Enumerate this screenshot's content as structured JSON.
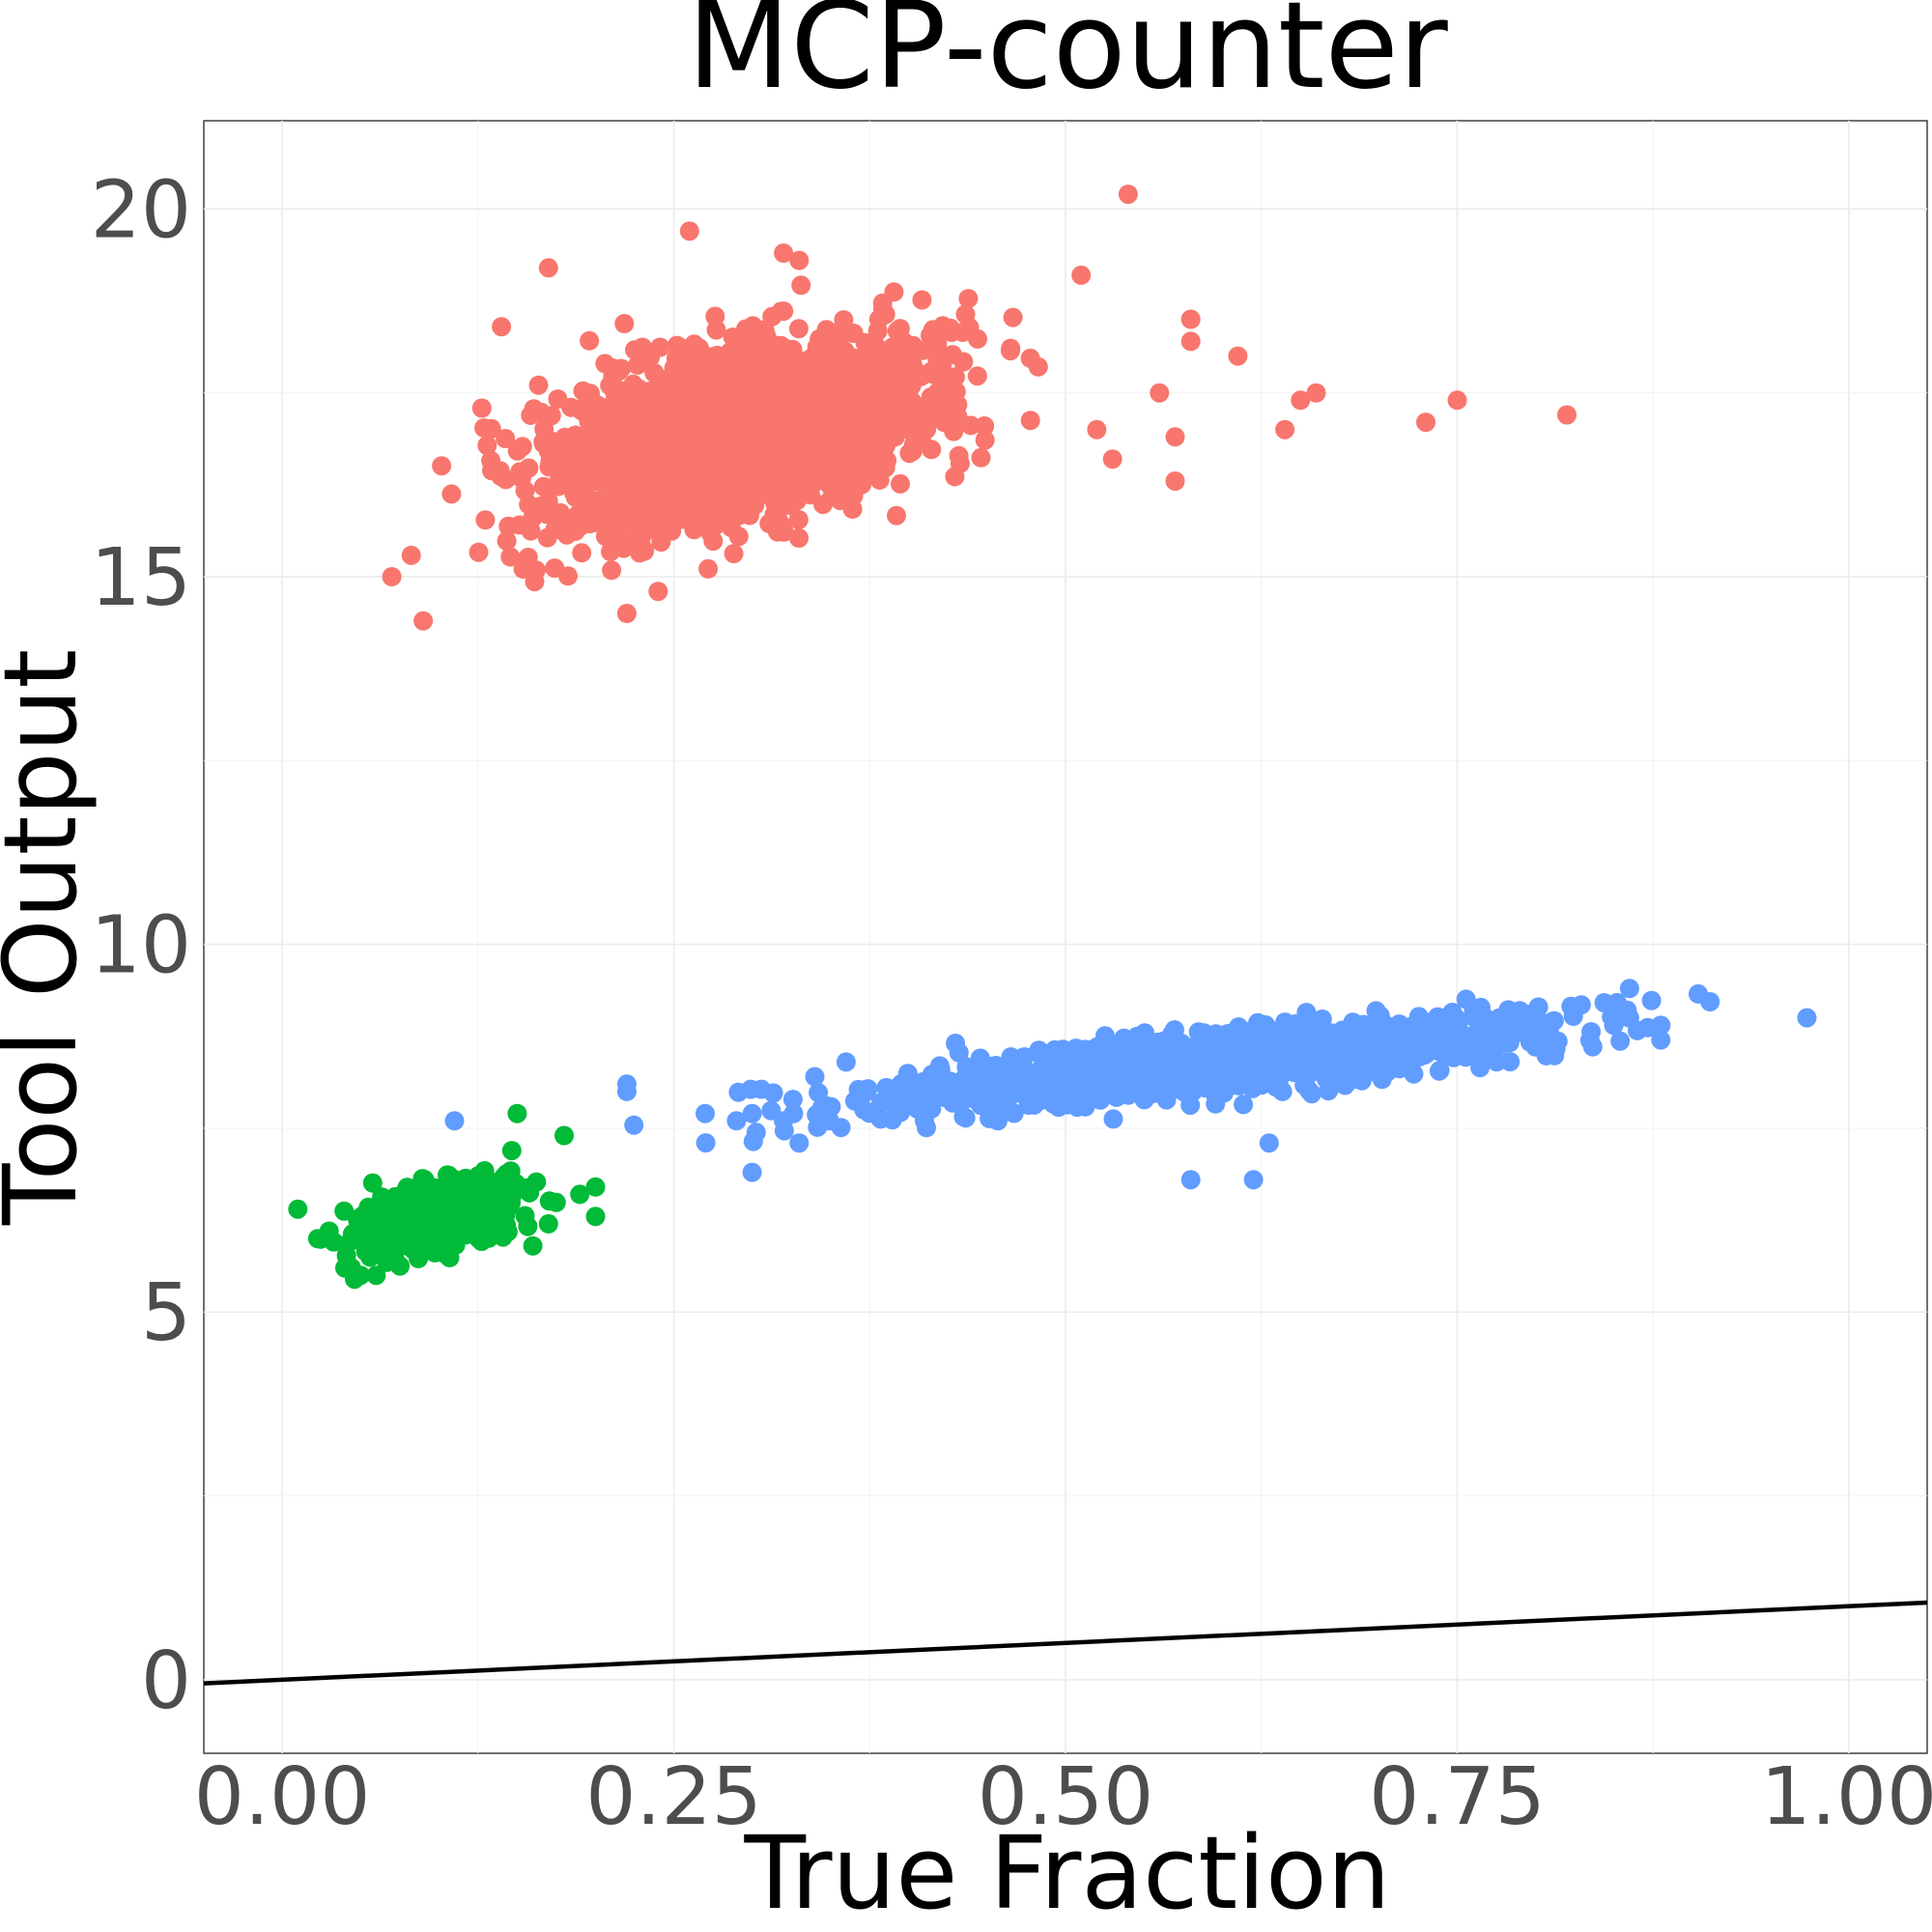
{
  "chart_data": {
    "type": "scatter",
    "title": "MCP-counter",
    "xlabel": "True Fraction",
    "ylabel": "Tool Output",
    "xlim": [
      -0.05,
      1.05
    ],
    "ylim": [
      -1.0,
      21.2
    ],
    "x_ticks": [
      0.0,
      0.25,
      0.5,
      0.75,
      1.0
    ],
    "x_tick_labels": [
      "0.00",
      "0.25",
      "0.50",
      "0.75",
      "1.00"
    ],
    "y_ticks": [
      0,
      5,
      10,
      15,
      20
    ],
    "y_tick_labels": [
      "0",
      "5",
      "10",
      "15",
      "20"
    ],
    "grid": true,
    "legend": "none",
    "reference_line": {
      "slope": 1,
      "intercept": 0,
      "color": "#000000"
    },
    "series": [
      {
        "color": "#F8766D",
        "center": [
          0.29,
          16.9
        ],
        "spread": [
          0.06,
          0.55
        ],
        "slope": 5.2,
        "n_points": 2200,
        "outliers": [
          [
            0.54,
            20.2
          ],
          [
            0.26,
            19.7
          ],
          [
            0.17,
            19.2
          ],
          [
            0.32,
            19.4
          ],
          [
            0.33,
            19.3
          ],
          [
            0.51,
            19.1
          ],
          [
            0.14,
            18.4
          ],
          [
            0.58,
            18.5
          ],
          [
            0.58,
            18.2
          ],
          [
            0.61,
            18.0
          ],
          [
            0.65,
            17.4
          ],
          [
            0.66,
            17.5
          ],
          [
            0.75,
            17.4
          ],
          [
            0.73,
            17.1
          ],
          [
            0.82,
            17.2
          ],
          [
            0.64,
            17.0
          ],
          [
            0.57,
            16.9
          ],
          [
            0.57,
            16.3
          ],
          [
            0.53,
            16.6
          ],
          [
            0.52,
            17.0
          ],
          [
            0.09,
            14.4
          ],
          [
            0.07,
            15.0
          ],
          [
            0.22,
            14.5
          ],
          [
            0.24,
            14.8
          ],
          [
            0.56,
            17.5
          ]
        ]
      },
      {
        "color": "#619CFF",
        "center": [
          0.6,
          8.4
        ],
        "spread": [
          0.11,
          0.2
        ],
        "slope": 2.3,
        "n_points": 1200,
        "outliers": [
          [
            0.22,
            8.1
          ],
          [
            0.22,
            8.0
          ],
          [
            0.27,
            7.7
          ],
          [
            0.29,
            7.6
          ],
          [
            0.3,
            7.7
          ],
          [
            0.3,
            6.9
          ],
          [
            0.32,
            7.6
          ],
          [
            0.33,
            7.3
          ],
          [
            0.11,
            7.6
          ],
          [
            0.86,
            9.4
          ],
          [
            0.88,
            8.9
          ],
          [
            0.88,
            8.7
          ],
          [
            0.86,
            9.0
          ],
          [
            0.85,
            8.9
          ],
          [
            0.58,
            6.8
          ],
          [
            0.62,
            6.8
          ],
          [
            0.63,
            7.3
          ],
          [
            0.34,
            8.2
          ],
          [
            0.36,
            8.4
          ],
          [
            0.41,
            7.6
          ]
        ]
      },
      {
        "color": "#00BA38",
        "center": [
          0.1,
          6.3
        ],
        "spread": [
          0.028,
          0.22
        ],
        "slope": 4.5,
        "n_points": 500,
        "outliers": [
          [
            0.01,
            6.4
          ],
          [
            0.15,
            7.7
          ],
          [
            0.18,
            7.4
          ],
          [
            0.19,
            6.6
          ],
          [
            0.2,
            6.7
          ],
          [
            0.2,
            6.3
          ],
          [
            0.03,
            6.1
          ],
          [
            0.04,
            5.6
          ],
          [
            0.05,
            5.5
          ],
          [
            0.06,
            5.5
          ],
          [
            0.16,
            5.9
          ],
          [
            0.17,
            6.2
          ]
        ]
      }
    ]
  }
}
